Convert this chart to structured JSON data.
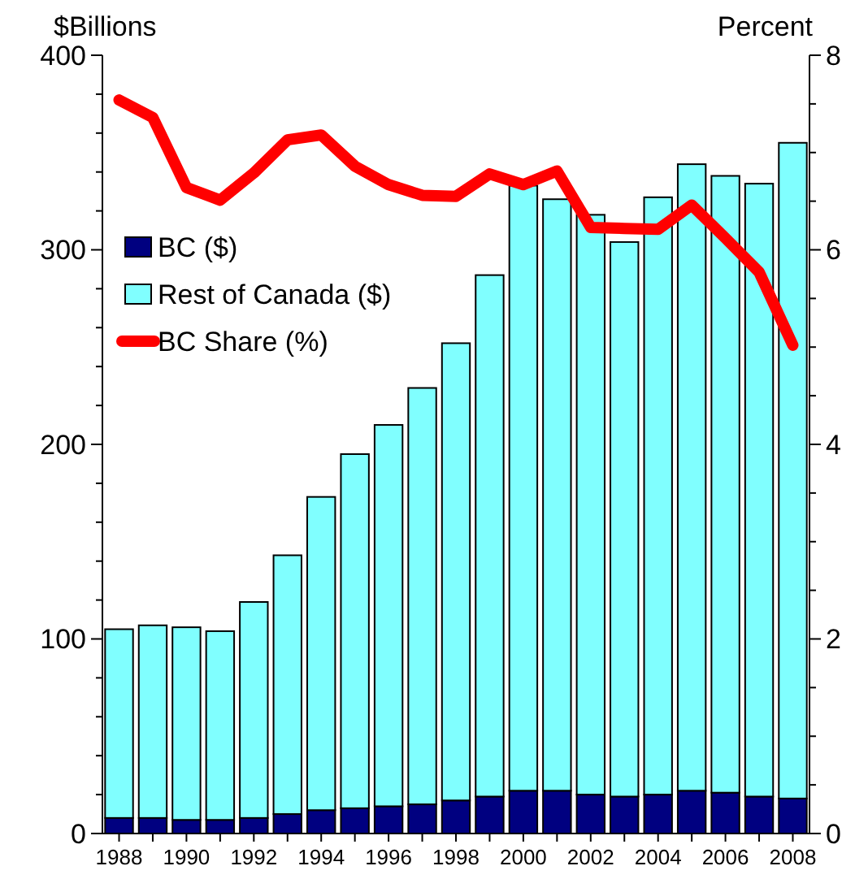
{
  "chart_data": {
    "type": "bar",
    "stacked": true,
    "ylabel": "$Billions",
    "y2label": "Percent",
    "categories": [
      "1988",
      null,
      "1990",
      null,
      "1992",
      null,
      "1994",
      null,
      "1996",
      null,
      "1998",
      null,
      "2000",
      null,
      "2002",
      null,
      "2004",
      null,
      "2006",
      null,
      "2008"
    ],
    "series": [
      {
        "name": "BC ($)",
        "color": "#000080",
        "values": [
          8,
          8,
          7,
          7,
          8,
          10,
          12,
          13,
          14,
          15,
          17,
          19,
          22,
          22,
          20,
          19,
          20,
          22,
          21,
          19,
          18
        ]
      },
      {
        "name": "Rest of Canada ($)",
        "color": "#80ffff",
        "values": [
          97,
          99,
          99,
          97,
          111,
          133,
          161,
          182,
          196,
          214,
          235,
          268,
          311,
          304,
          298,
          285,
          307,
          322,
          317,
          315,
          337
        ]
      },
      {
        "name": "BC Share (%)",
        "type": "line",
        "axis": "y2",
        "color": "#ff0000",
        "values": [
          7.54,
          7.36,
          6.64,
          6.51,
          6.79,
          7.13,
          7.18,
          6.86,
          6.67,
          6.56,
          6.55,
          6.78,
          6.67,
          6.81,
          6.23,
          6.22,
          6.21,
          6.46,
          6.12,
          5.77,
          5.02
        ]
      }
    ],
    "ylim": [
      0,
      400
    ],
    "yticks": [
      0,
      {
        "value": 20,
        "label": null
      },
      {
        "value": 40,
        "label": null
      },
      {
        "value": 60,
        "label": null
      },
      {
        "value": 80,
        "label": null
      },
      100,
      {
        "value": 120,
        "label": null
      },
      {
        "value": 140,
        "label": null
      },
      {
        "value": 160,
        "label": null
      },
      {
        "value": 180,
        "label": null
      },
      200,
      {
        "value": 220,
        "label": null
      },
      {
        "value": 240,
        "label": null
      },
      {
        "value": 260,
        "label": null
      },
      {
        "value": 280,
        "label": null
      },
      300,
      {
        "value": 320,
        "label": null
      },
      {
        "value": 340,
        "label": null
      },
      {
        "value": 360,
        "label": null
      },
      {
        "value": 380,
        "label": null
      },
      400
    ],
    "y2lim": [
      0,
      8
    ],
    "y2ticks": [
      0,
      {
        "value": 0.5,
        "label": null
      },
      {
        "value": 1,
        "label": null
      },
      {
        "value": 1.5,
        "label": null
      },
      2,
      {
        "value": 2.5,
        "label": null
      },
      {
        "value": 3,
        "label": null
      },
      {
        "value": 3.5,
        "label": null
      },
      4,
      {
        "value": 4.5,
        "label": null
      },
      {
        "value": 5,
        "label": null
      },
      {
        "value": 5.5,
        "label": null
      },
      6,
      {
        "value": 6.5,
        "label": null
      },
      {
        "value": 7,
        "label": null
      },
      {
        "value": 7.5,
        "label": null
      },
      8
    ],
    "legend": "top left",
    "grid": false
  }
}
